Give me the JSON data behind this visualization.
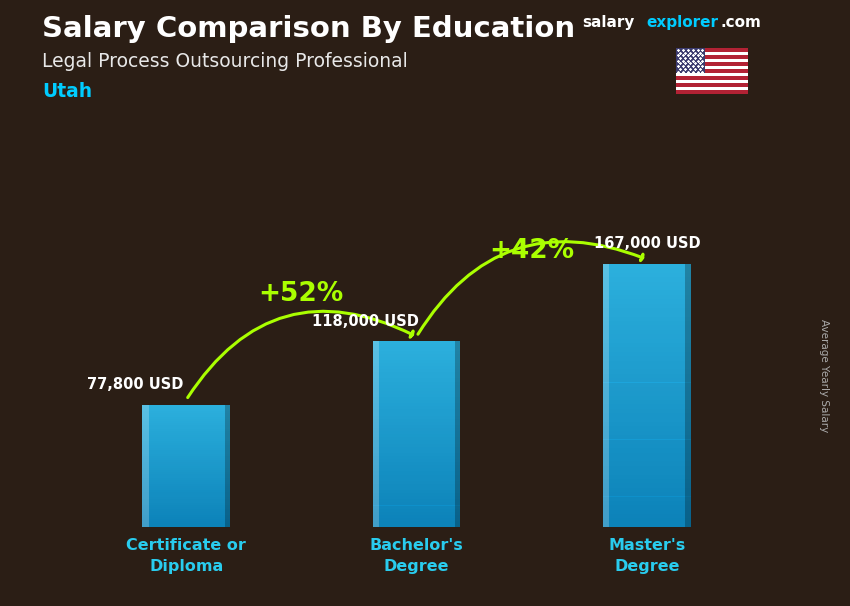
{
  "title": "Salary Comparison By Education",
  "subtitle": "Legal Process Outsourcing Professional",
  "location": "Utah",
  "categories": [
    "Certificate or\nDiploma",
    "Bachelor's\nDegree",
    "Master's\nDegree"
  ],
  "values": [
    77800,
    118000,
    167000
  ],
  "value_labels": [
    "77,800 USD",
    "118,000 USD",
    "167,000 USD"
  ],
  "pct_labels": [
    "+52%",
    "+42%"
  ],
  "bar_color_main": "#29b6e8",
  "bar_color_dark": "#1a7db5",
  "bar_color_light": "#55d4f5",
  "background_color": "#2b1e15",
  "title_color": "#ffffff",
  "subtitle_color": "#e8e8e8",
  "location_color": "#00ccff",
  "ylabel": "Average Yearly Salary",
  "ylabel_color": "#aaaaaa",
  "value_label_color": "#ffffff",
  "pct_color": "#aaff00",
  "arrow_color": "#aaff00",
  "xtick_color": "#29ccee",
  "brand_color_salary": "#ffffff",
  "brand_color_explorer": "#00ccff",
  "brand_color_com": "#ffffff",
  "ylim": [
    0,
    200000
  ],
  "bar_width": 0.38,
  "x_positions": [
    0,
    1,
    2
  ]
}
